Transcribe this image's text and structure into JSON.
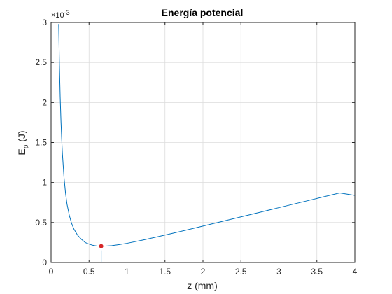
{
  "chart_data": {
    "type": "line",
    "title": "Energía potencial",
    "xlabel": "z (mm)",
    "ylabel_main": "E",
    "ylabel_sub": "p",
    "ylabel_unit": " (J)",
    "y_exponent_prefix": "×10",
    "y_exponent": "-3",
    "xlim": [
      0,
      4
    ],
    "ylim": [
      0,
      3
    ],
    "x_ticks": [
      0,
      0.5,
      1,
      1.5,
      2,
      2.5,
      3,
      3.5,
      4
    ],
    "x_tick_labels": [
      "0",
      "0.5",
      "1",
      "1.5",
      "2",
      "2.5",
      "3",
      "3.5",
      "4"
    ],
    "y_ticks": [
      0,
      0.5,
      1,
      1.5,
      2,
      2.5,
      3
    ],
    "y_tick_labels": [
      "0",
      "0.5",
      "1",
      "1.5",
      "2",
      "2.5",
      "3"
    ],
    "grid": true,
    "series": [
      {
        "color": "#0072bd",
        "x": [
          0.1,
          0.11,
          0.12,
          0.13,
          0.14,
          0.15,
          0.17,
          0.19,
          0.21,
          0.24,
          0.27,
          0.3,
          0.35,
          0.4,
          0.45,
          0.5,
          0.55,
          0.6,
          0.66,
          0.72,
          0.8,
          0.9,
          1.0,
          1.2,
          1.4,
          1.6,
          1.8,
          2.0,
          2.2,
          2.4,
          2.6,
          2.8,
          3.0,
          3.2,
          3.4,
          3.6,
          3.8,
          4.0
        ],
        "y": [
          2.98,
          2.46,
          2.07,
          1.77,
          1.54,
          1.35,
          1.07,
          0.87,
          0.73,
          0.59,
          0.49,
          0.42,
          0.34,
          0.29,
          0.25,
          0.23,
          0.215,
          0.207,
          0.204,
          0.205,
          0.211,
          0.224,
          0.24,
          0.279,
          0.321,
          0.365,
          0.41,
          0.456,
          0.502,
          0.548,
          0.594,
          0.64,
          0.686,
          0.732,
          0.778,
          0.824,
          0.87,
          0.84
        ]
      }
    ],
    "marker": {
      "x": 0.66,
      "y": 0.204,
      "color": "#d62728"
    },
    "guide_line": {
      "x": 0.66,
      "color": "#0072bd"
    }
  }
}
